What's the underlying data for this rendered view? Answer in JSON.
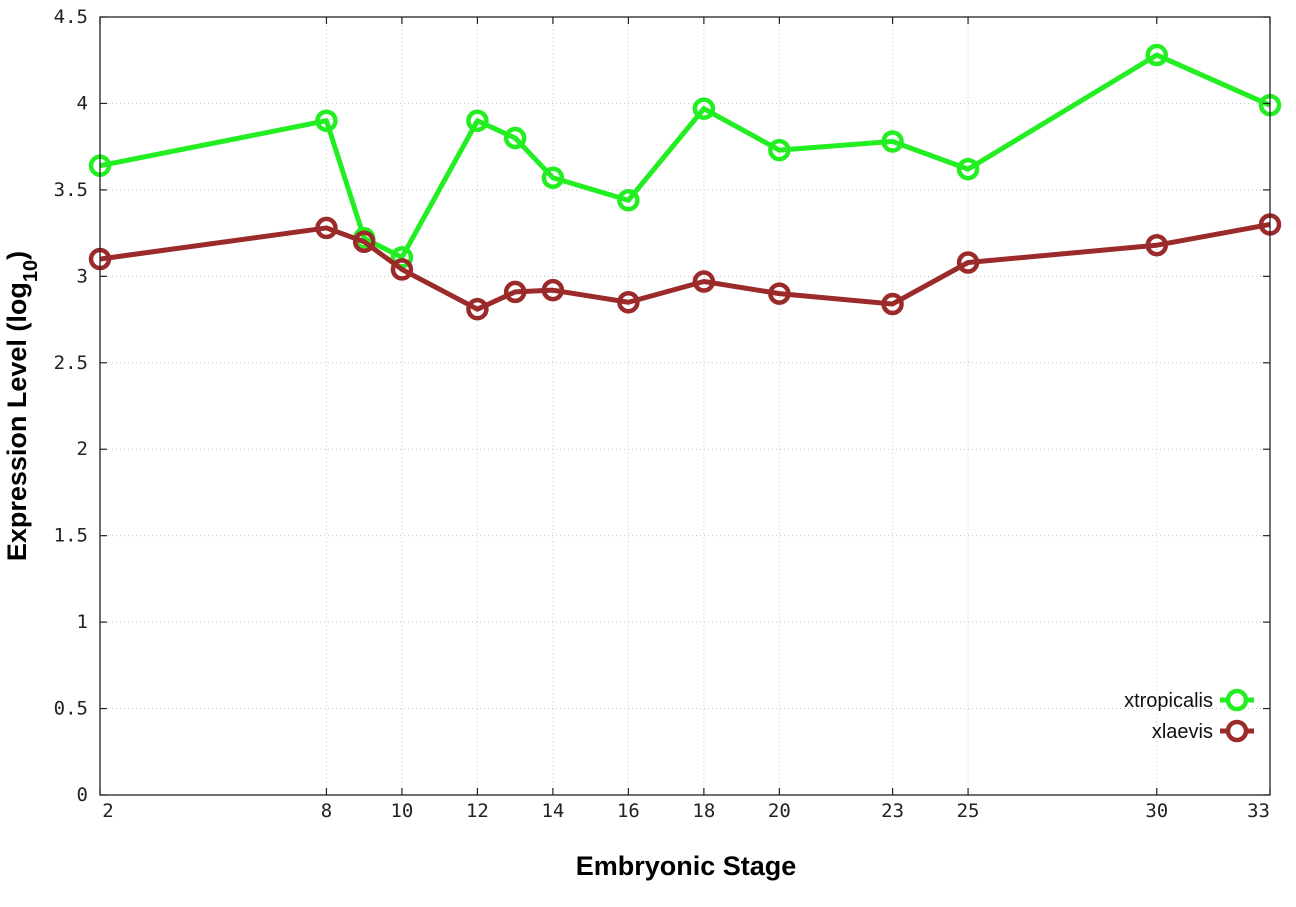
{
  "chart_data": {
    "type": "line",
    "title": "",
    "xlabel": "Embryonic Stage",
    "ylabel_main": "Expression Level (log",
    "ylabel_sub": "10",
    "ylabel_close": ")",
    "x": [
      2,
      8,
      9,
      10,
      12,
      13,
      14,
      16,
      18,
      20,
      23,
      25,
      30,
      33
    ],
    "x_ticks": [
      2,
      8,
      10,
      12,
      14,
      16,
      18,
      20,
      23,
      25,
      30,
      33
    ],
    "y_ticks": [
      "0",
      "0.5",
      "1",
      "1.5",
      "2",
      "2.5",
      "3",
      "3.5",
      "4",
      "4.5"
    ],
    "xlim": [
      2,
      33
    ],
    "ylim": [
      0,
      4.5
    ],
    "grid": true,
    "legend_position": "bottom-right",
    "series": [
      {
        "name": "xtropicalis",
        "color": "#22ee22",
        "values": [
          3.64,
          3.9,
          3.22,
          3.11,
          3.9,
          3.8,
          3.57,
          3.44,
          3.97,
          3.73,
          3.78,
          3.62,
          4.28,
          3.99
        ]
      },
      {
        "name": "xlaevis",
        "color": "#9b2a2a",
        "values": [
          3.1,
          3.28,
          3.2,
          3.04,
          2.81,
          2.91,
          2.92,
          2.85,
          2.97,
          2.9,
          2.84,
          3.08,
          3.18,
          3.3
        ]
      }
    ]
  }
}
